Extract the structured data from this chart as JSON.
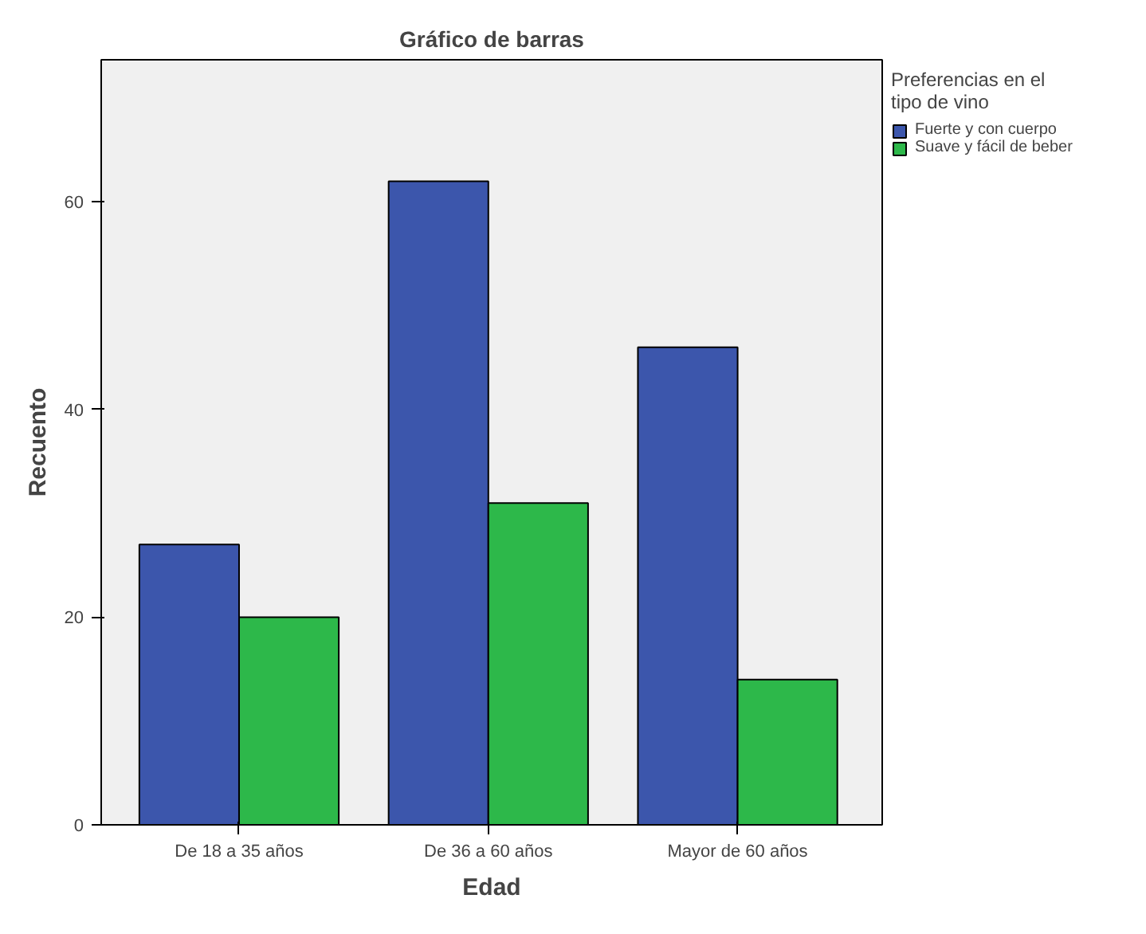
{
  "chart_data": {
    "type": "bar",
    "title": "Gráfico de barras",
    "xlabel": "Edad",
    "ylabel": "Recuento",
    "legend_title": "Preferencias en el tipo de vino",
    "categories": [
      "De 18 a 35 años",
      "De 36 a 60 años",
      "Mayor de 60 años"
    ],
    "series": [
      {
        "name": "Fuerte y con cuerpo",
        "color": "#3c56ac",
        "values": [
          27,
          62,
          46
        ]
      },
      {
        "name": "Suave y fácil de beber",
        "color": "#2db84a",
        "values": [
          20,
          31,
          14
        ]
      }
    ],
    "ylim": [
      0,
      73.7
    ],
    "yticks": [
      0,
      20,
      40,
      60
    ],
    "grid": false,
    "legend": "top right"
  }
}
